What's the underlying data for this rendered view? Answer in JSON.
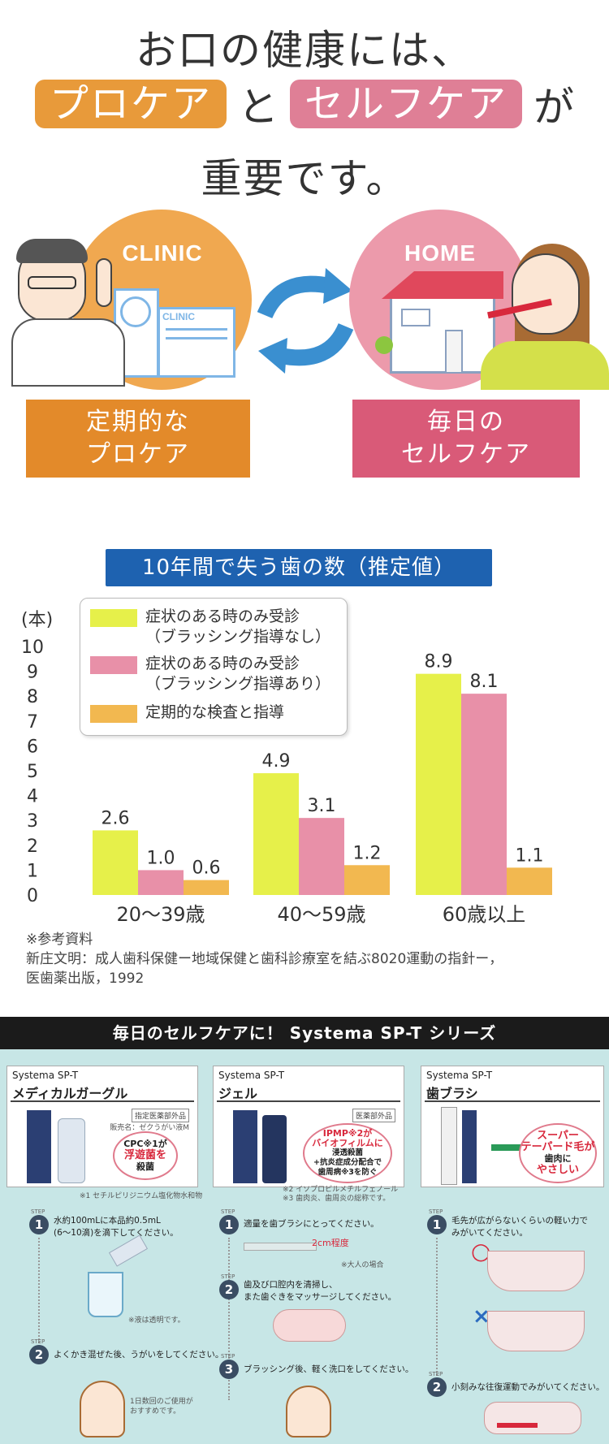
{
  "header": {
    "line1": "お口の健康には、",
    "pro_care": "プロケア",
    "to": "と",
    "self_care": "セルフケア",
    "ga": "が",
    "line3": "重要です。"
  },
  "flow": {
    "clinic_label": "CLINIC",
    "clinic_sign": "CLINIC",
    "home_label": "HOME",
    "left_box": [
      "定期的な",
      "プロケア"
    ],
    "right_box": [
      "毎日の",
      "セルフケア"
    ],
    "colors": {
      "orange": "#e38a2a",
      "pink": "#d95a78",
      "arrow": "#3a8fd0"
    }
  },
  "chart_data": {
    "type": "bar",
    "title": "10年間で失う歯の数（推定値）",
    "ylabel": "(本)",
    "ylim": [
      0,
      10
    ],
    "yticks": [
      "0",
      "1",
      "2",
      "3",
      "4",
      "5",
      "6",
      "7",
      "8",
      "9",
      "10"
    ],
    "categories": [
      "20〜39歳",
      "40〜59歳",
      "60歳以上"
    ],
    "series": [
      {
        "name": "症状のある時のみ受診（ブラッシング指導なし）",
        "legend": [
          "症状のある時のみ受診",
          "（ブラッシング指導なし）"
        ],
        "values": [
          2.6,
          4.9,
          8.9
        ],
        "labels": [
          "2.6",
          "4.9",
          "8.9"
        ],
        "color": "#e6f04a"
      },
      {
        "name": "症状のある時のみ受診（ブラッシング指導あり）",
        "legend": [
          "症状のある時のみ受診",
          "（ブラッシング指導あり）"
        ],
        "values": [
          1.0,
          3.1,
          8.1
        ],
        "labels": [
          "1.0",
          "3.1",
          "8.1"
        ],
        "color": "#e890a8"
      },
      {
        "name": "定期的な検査と指導",
        "legend": [
          "定期的な検査と指導"
        ],
        "values": [
          0.6,
          1.2,
          1.1
        ],
        "labels": [
          "0.6",
          "1.2",
          "1.1"
        ],
        "color": "#f2b850"
      }
    ],
    "grid": false,
    "legend_position": "top-left"
  },
  "reference": {
    "title": "※参考資料",
    "line1": "新庄文明：成人歯科保健ー地域保健と歯科診療室を結ぶ8020運動の指針ー，",
    "line2": "医歯薬出版，1992"
  },
  "series_banner": "毎日のセルフケアに！ Systema SP-T シリーズ",
  "products": [
    {
      "brand": "Systema SP-T",
      "name": "メディカルガーグル",
      "tag": "指定医薬部外品",
      "sub": "販売名：ゼクうがい液M",
      "blob": [
        "CPC※1が",
        "浮遊菌を",
        "殺菌"
      ],
      "footnote": "※1 セチルピリジニウム塩化物水和物",
      "steps": [
        {
          "num": "1",
          "text": [
            "水約100mLに本品約0.5mL",
            "(6〜10滴)を滴下してください。"
          ]
        },
        {
          "num": "2",
          "text": [
            "よくかき混ぜた後、うがいをしてください。"
          ]
        }
      ],
      "note1": "※液は透明です。",
      "note2": [
        "1日数回のご使用が",
        "おすすめです。"
      ]
    },
    {
      "brand": "Systema SP-T",
      "name": "ジェル",
      "tag": "医薬部外品",
      "blob": [
        "IPMP※2が",
        "バイオフィルムに",
        "浸透殺菌",
        "+抗炎症成分配合で",
        "歯周病※3を防ぐ"
      ],
      "footnote": [
        "※2 イソプロピルメチルフェノール",
        "※3 歯肉炎、歯周炎の総称です。"
      ],
      "steps": [
        {
          "num": "1",
          "text": [
            "適量を歯ブラシにとってください。"
          ]
        },
        {
          "num": "2",
          "text": [
            "歯及び口腔内を清掃し、",
            "また歯ぐきをマッサージしてください。"
          ]
        },
        {
          "num": "3",
          "text": [
            "ブラッシング後、軽く洗口をしてください。"
          ]
        }
      ],
      "measure": "2cm程度",
      "measure_note": "※大人の場合"
    },
    {
      "brand": "Systema SP-T",
      "name": "歯ブラシ",
      "blob": [
        "スーパー",
        "テーパード毛が",
        "歯肉に",
        "やさしい"
      ],
      "steps": [
        {
          "num": "1",
          "text": [
            "毛先が広がらないくらいの軽い力で",
            "みがいてください。"
          ]
        },
        {
          "num": "2",
          "text": [
            "小刻みな往復運動でみがいてください。"
          ]
        }
      ],
      "good": "○",
      "bad": "×"
    }
  ],
  "step_caption": "STEP"
}
